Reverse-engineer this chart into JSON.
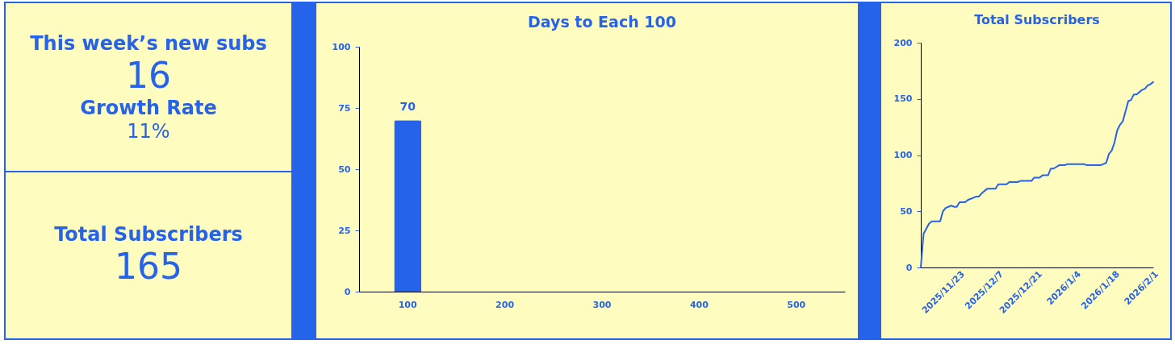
{
  "chart_data": [
    {
      "type": "other",
      "annotations": [
        "This week’s new subs",
        "16",
        "Growth Rate",
        "11%",
        "Total Subscribers",
        "165"
      ]
    },
    {
      "type": "bar",
      "title": "Days to Each 100",
      "categories": [
        "100",
        "200",
        "300",
        "400",
        "500"
      ],
      "series": [
        {
          "color": "#2563eb",
          "values": [
            70,
            null,
            null,
            null,
            null
          ]
        }
      ],
      "data_labels": true,
      "ylim": [
        0,
        100
      ],
      "yticks": [
        0,
        25,
        50,
        75,
        100
      ]
    },
    {
      "type": "line",
      "title": "Total Subscribers",
      "x": [
        "2025-11-09",
        "2025-11-10",
        "2025-11-12",
        "2025-11-13",
        "2025-11-16",
        "2025-11-17",
        "2025-11-18",
        "2025-11-20",
        "2025-11-21",
        "2025-11-22",
        "2025-11-23",
        "2025-11-25",
        "2025-11-26",
        "2025-11-29",
        "2025-11-30",
        "2025-12-01",
        "2025-12-02",
        "2025-12-03",
        "2025-12-06",
        "2025-12-07",
        "2025-12-10",
        "2025-12-11",
        "2025-12-14",
        "2025-12-15",
        "2025-12-19",
        "2025-12-20",
        "2025-12-22",
        "2025-12-23",
        "2025-12-25",
        "2025-12-26",
        "2025-12-27",
        "2025-12-29",
        "2025-12-31",
        "2026-01-01",
        "2026-01-07",
        "2026-01-08",
        "2026-01-13",
        "2026-01-14",
        "2026-01-15",
        "2026-01-16",
        "2026-01-17",
        "2026-01-18",
        "2026-01-19",
        "2026-01-20",
        "2026-01-21",
        "2026-01-23",
        "2026-01-24",
        "2026-01-25",
        "2026-01-26",
        "2026-01-27",
        "2026-01-28",
        "2026-01-29",
        "2026-01-30",
        "2026-01-31",
        "2026-02-01"
      ],
      "series": [
        {
          "color": "#2563eb",
          "line_style": "solid",
          "values": [
            0,
            30,
            39,
            41,
            41,
            50,
            53,
            55,
            54,
            54,
            58,
            58,
            60,
            63,
            63,
            66,
            68,
            70,
            70,
            74,
            74,
            76,
            76,
            77,
            77,
            80,
            80,
            82,
            82,
            88,
            88,
            91,
            91,
            92,
            92,
            91,
            91,
            92,
            93,
            101,
            104,
            111,
            122,
            127,
            130,
            148,
            149,
            154,
            154,
            156,
            158,
            159,
            162,
            163,
            165
          ]
        }
      ],
      "xlim": [
        "2025-11-09",
        "2026-02-01"
      ],
      "xticks": [
        {
          "value": "2025-11-23",
          "label": "2025/11/23"
        },
        {
          "value": "2025-12-07",
          "label": "2025/12/7"
        },
        {
          "value": "2025-12-21",
          "label": "2025/12/21"
        },
        {
          "value": "2026-01-04",
          "label": "2026/1/4"
        },
        {
          "value": "2026-01-18",
          "label": "2026/1/18"
        },
        {
          "value": "2026-02-01",
          "label": "2026/2/1"
        }
      ],
      "ylim": [
        0,
        200
      ],
      "yticks": [
        0,
        50,
        100,
        150,
        200
      ]
    }
  ]
}
